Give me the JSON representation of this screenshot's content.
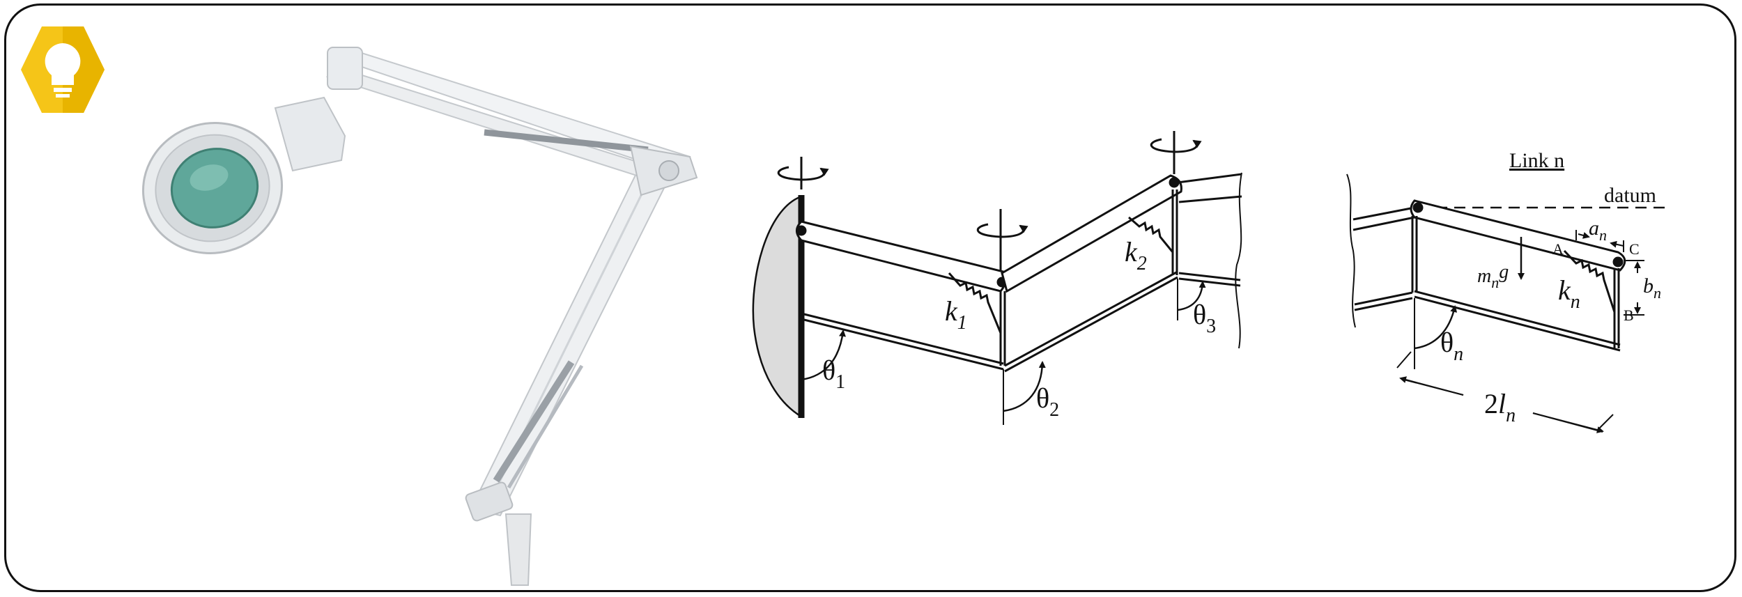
{
  "colors": {
    "badge": "#f5c518",
    "badge_dark": "#e0a800",
    "ink": "#111111",
    "wall": "#d9d9d9",
    "lamp": "#eef0f2",
    "lens": "#5fa79a"
  },
  "icons": {
    "badge": "lightbulb-icon"
  },
  "diagram1": {
    "theta1_sym": "θ",
    "theta1_sub": "1",
    "theta2_sym": "θ",
    "theta2_sub": "2",
    "theta3_sym": "θ",
    "theta3_sub": "3",
    "k1_sym": "k",
    "k1_sub": "1",
    "k2_sym": "k",
    "k2_sub": "2"
  },
  "diagram2": {
    "title": "Link n",
    "datum": "datum",
    "a_sym": "a",
    "a_sub": "n",
    "b_sym": "b",
    "b_sub": "n",
    "k_sym": "k",
    "k_sub": "n",
    "m_sym": "m",
    "m_sub": "n",
    "g_sym": "g",
    "theta_sym": "θ",
    "theta_sub": "n",
    "len_pre": "2",
    "len_sym": "l",
    "len_sub": "n",
    "pt_a": "A",
    "pt_b": "B",
    "pt_c": "C"
  }
}
